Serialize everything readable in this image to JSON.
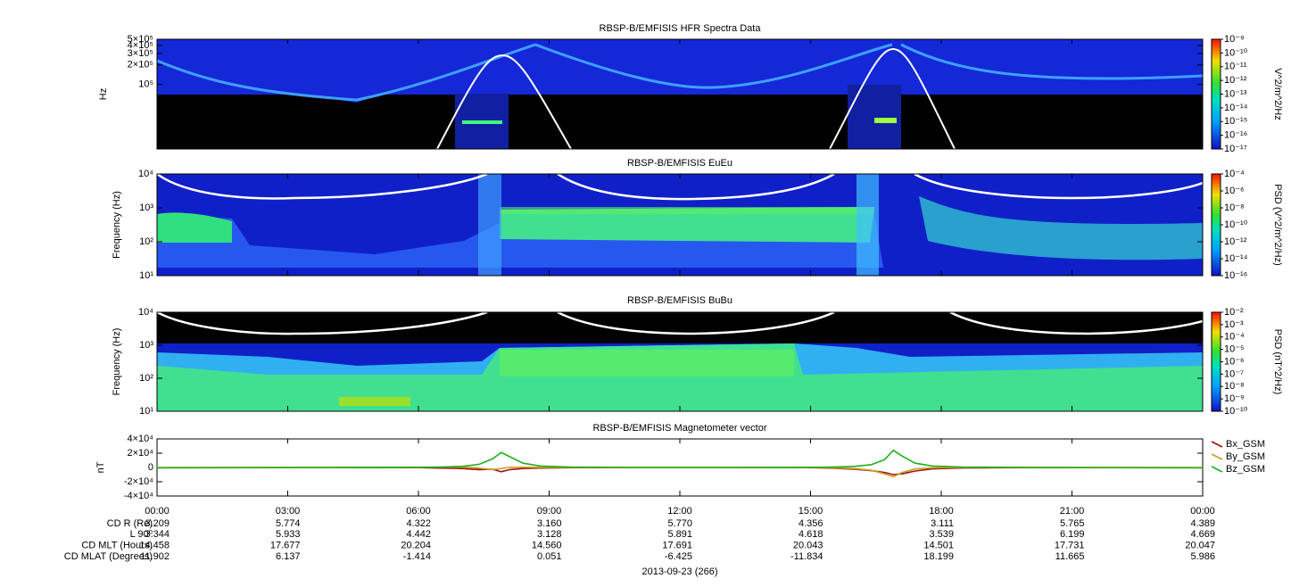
{
  "chart_data": [
    {
      "type": "spectrogram",
      "title": "RBSP-B/EMFISIS  HFR Spectra Data",
      "ylabel": "Hz",
      "log_y": true,
      "xlim": [
        0,
        24
      ],
      "ylim": [
        10000,
        500000
      ],
      "yticks": [
        {
          "value": 500000,
          "label": "5×10⁵"
        },
        {
          "value": 400000,
          "label": "4×10⁵"
        },
        {
          "value": 300000,
          "label": "3×10⁵"
        },
        {
          "value": 200000,
          "label": "2×10⁵"
        },
        {
          "value": 100000,
          "label": "10⁵"
        }
      ],
      "colorbar": {
        "label": "V^2/m^2/Hz",
        "lim": [
          1e-17,
          1e-09
        ],
        "ticks": [
          {
            "value": 1e-09,
            "label": "10⁻⁹"
          },
          {
            "value": 1e-10,
            "label": "10⁻¹⁰"
          },
          {
            "value": 1e-11,
            "label": "10⁻¹¹"
          },
          {
            "value": 1e-12,
            "label": "10⁻¹²"
          },
          {
            "value": 1e-13,
            "label": "10⁻¹³"
          },
          {
            "value": 1e-14,
            "label": "10⁻¹⁴"
          },
          {
            "value": 1e-15,
            "label": "10⁻¹⁵"
          },
          {
            "value": 1e-16,
            "label": "10⁻¹⁶"
          },
          {
            "value": 1e-17,
            "label": "10⁻¹⁷"
          }
        ]
      }
    },
    {
      "type": "spectrogram",
      "title": "RBSP-B/EMFISIS  EuEu",
      "ylabel": "Frequency (Hz)",
      "log_y": true,
      "xlim": [
        0,
        24
      ],
      "ylim": [
        10,
        10000
      ],
      "yticks": [
        {
          "value": 10000,
          "label": "10⁴"
        },
        {
          "value": 1000,
          "label": "10³"
        },
        {
          "value": 100,
          "label": "10²"
        },
        {
          "value": 10,
          "label": "10¹"
        }
      ],
      "colorbar": {
        "label": "PSD (V^2/m^2/Hz)",
        "lim": [
          1e-16,
          0.0001
        ],
        "ticks": [
          {
            "value": 0.0001,
            "label": "10⁻⁴"
          },
          {
            "value": 1e-06,
            "label": "10⁻⁶"
          },
          {
            "value": 1e-08,
            "label": "10⁻⁸"
          },
          {
            "value": 1e-10,
            "label": "10⁻¹⁰"
          },
          {
            "value": 1e-12,
            "label": "10⁻¹²"
          },
          {
            "value": 1e-14,
            "label": "10⁻¹⁴"
          },
          {
            "value": 1e-16,
            "label": "10⁻¹⁶"
          }
        ]
      }
    },
    {
      "type": "spectrogram",
      "title": "RBSP-B/EMFISIS  BuBu",
      "ylabel": "Frequency (Hz)",
      "log_y": true,
      "xlim": [
        0,
        24
      ],
      "ylim": [
        10,
        10000
      ],
      "yticks": [
        {
          "value": 10000,
          "label": "10⁴"
        },
        {
          "value": 1000,
          "label": "10³"
        },
        {
          "value": 100,
          "label": "10²"
        },
        {
          "value": 10,
          "label": "10¹"
        }
      ],
      "colorbar": {
        "label": "PSD (nT^2/Hz)",
        "lim": [
          1e-10,
          0.01
        ],
        "ticks": [
          {
            "value": 0.01,
            "label": "10⁻²"
          },
          {
            "value": 0.001,
            "label": "10⁻³"
          },
          {
            "value": 0.0001,
            "label": "10⁻⁴"
          },
          {
            "value": 1e-05,
            "label": "10⁻⁵"
          },
          {
            "value": 1e-06,
            "label": "10⁻⁶"
          },
          {
            "value": 1e-07,
            "label": "10⁻⁷"
          },
          {
            "value": 1e-08,
            "label": "10⁻⁸"
          },
          {
            "value": 1e-09,
            "label": "10⁻⁹"
          },
          {
            "value": 1e-10,
            "label": "10⁻¹⁰"
          }
        ]
      }
    },
    {
      "type": "line",
      "title": "RBSP-B/EMFISIS  Magnetometer vector",
      "ylabel": "nT",
      "xlim": [
        0,
        24
      ],
      "ylim": [
        -40000,
        40000
      ],
      "yticks": [
        {
          "value": 40000,
          "label": "4×10⁴"
        },
        {
          "value": 20000,
          "label": "2×10⁴"
        },
        0,
        {
          "value": -20000,
          "label": "-2×10⁴"
        },
        {
          "value": -40000,
          "label": "-4×10⁴"
        }
      ],
      "xticks": [
        {
          "value": 0,
          "label": "00:00"
        },
        {
          "value": 3,
          "label": "03:00"
        },
        {
          "value": 6,
          "label": "06:00"
        },
        {
          "value": 9,
          "label": "09:00"
        },
        {
          "value": 12,
          "label": "12:00"
        },
        {
          "value": 15,
          "label": "15:00"
        },
        {
          "value": 18,
          "label": "18:00"
        },
        {
          "value": 21,
          "label": "21:00"
        },
        {
          "value": 24,
          "label": "00:00"
        }
      ],
      "x": [
        0,
        2,
        4,
        6,
        6.5,
        7,
        7.4,
        7.7,
        7.9,
        8.1,
        8.4,
        8.8,
        9.5,
        11,
        13,
        15,
        15.5,
        16,
        16.4,
        16.7,
        16.9,
        17.1,
        17.4,
        17.8,
        18.5,
        20,
        22,
        24
      ],
      "series": [
        {
          "name": "Bx_GSM",
          "color": "#a01010",
          "values": [
            -300,
            -200,
            0,
            -300,
            -800,
            -1500,
            -3000,
            -2500,
            -6000,
            -3000,
            -1500,
            -800,
            -300,
            0,
            0,
            -200,
            -1000,
            -2500,
            -4500,
            -7000,
            -10000,
            -9000,
            -5000,
            -2000,
            -700,
            -200,
            -200,
            -300
          ]
        },
        {
          "name": "By_GSM",
          "color": "#c8a020",
          "values": [
            0,
            0,
            0,
            0,
            300,
            800,
            -1000,
            -3000,
            -1500,
            300,
            200,
            100,
            0,
            0,
            0,
            0,
            -500,
            -1500,
            -4000,
            -9000,
            -13000,
            -7000,
            -2000,
            -500,
            0,
            0,
            0,
            0
          ]
        },
        {
          "name": "Bz_GSM",
          "color": "#20b020",
          "values": [
            -500,
            -300,
            0,
            200,
            600,
            1500,
            4500,
            12000,
            21000,
            15000,
            6000,
            2000,
            500,
            0,
            0,
            100,
            500,
            1500,
            4000,
            11000,
            24000,
            16000,
            6000,
            2000,
            500,
            0,
            -300,
            -500
          ]
        }
      ]
    }
  ],
  "ephemeris": {
    "rows": [
      {
        "label": "CD R (Re)",
        "values": [
          "3.209",
          "5.774",
          "4.322",
          "3.160",
          "5.770",
          "4.356",
          "3.111",
          "5.765",
          "4.389"
        ]
      },
      {
        "label": "L 90⁰",
        "values": [
          "3.344",
          "5.933",
          "4.442",
          "3.128",
          "5.891",
          "4.618",
          "3.539",
          "6.199",
          "4.669"
        ]
      },
      {
        "label": "CD MLT (Hours)",
        "values": [
          "14.458",
          "17.677",
          "20.204",
          "14.560",
          "17.691",
          "20.043",
          "14.501",
          "17.731",
          "20.047"
        ]
      },
      {
        "label": "CD MLAT (Degrees)",
        "values": [
          "11.902",
          "6.137",
          "-1.414",
          "0.051",
          "-6.425",
          "-11.834",
          "18.199",
          "11.665",
          "5.986"
        ]
      }
    ]
  },
  "date": "2013-09-23 (266)"
}
